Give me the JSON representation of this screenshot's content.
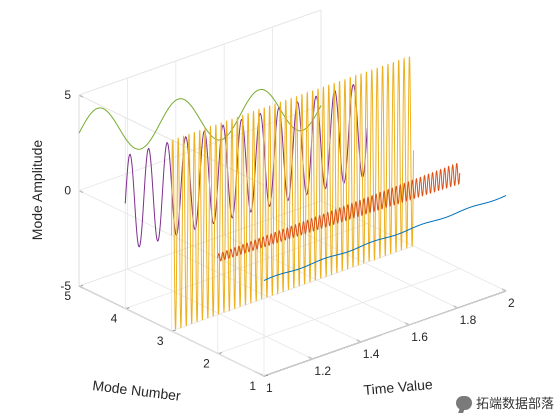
{
  "chart_data": {
    "type": "line3d",
    "xlabel": "Time Value",
    "ylabel": "Mode Number",
    "zlabel": "Mode Amplitude",
    "xlim": [
      1,
      2
    ],
    "ylim": [
      1,
      5
    ],
    "zlim": [
      -5,
      5
    ],
    "xticks": [
      "1",
      "1.2",
      "1.4",
      "1.6",
      "1.8",
      "2"
    ],
    "yticks": [
      "1",
      "2",
      "3",
      "4",
      "5"
    ],
    "zticks": [
      "-5",
      "0",
      "5"
    ],
    "grid": true,
    "series": [
      {
        "mode": 1,
        "color": "#0072BD",
        "amplitude": 0.04,
        "cycles": 5,
        "offset": 0,
        "growth": 0
      },
      {
        "mode": 2,
        "color": "#D95319",
        "amplitude": 0.2,
        "cycles": 60,
        "offset": 0,
        "growth": 1.8
      },
      {
        "mode": 3,
        "color": "#EDB120",
        "amplitude": 5,
        "cycles": 45,
        "offset": 0,
        "growth": 0
      },
      {
        "mode": 4,
        "color": "#7E2F8E",
        "amplitude": 2.5,
        "cycles": 13,
        "offset": 0.5,
        "growth": 0
      },
      {
        "mode": 5,
        "color": "#77AC30",
        "amplitude": 1.2,
        "cycles": 3,
        "offset": 3.0,
        "growth": 0
      }
    ]
  },
  "watermark": {
    "text": "拓端数据部落"
  }
}
